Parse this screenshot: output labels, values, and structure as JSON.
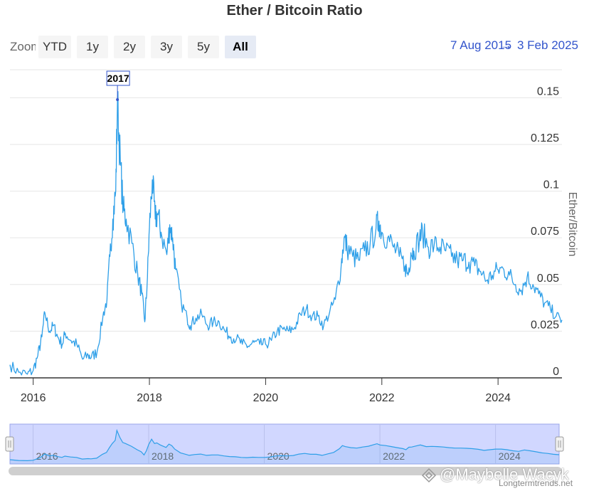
{
  "title": "Ether / Bitcoin Ratio",
  "zoom": {
    "label": "Zoom",
    "buttons": [
      "YTD",
      "1y",
      "2y",
      "3y",
      "5y",
      "All"
    ],
    "active": "All"
  },
  "range": {
    "from": "7 Aug 2015",
    "separator": "→",
    "to": "3 Feb 2025"
  },
  "watermark": "@Maybelle Wacyk",
  "credit": "Longtermtrends.net",
  "colors": {
    "series": "#2e9fe8",
    "navigator_fill": "#ccd3ff",
    "flag_border": "#3355cc",
    "grid": "#e6e6e6"
  },
  "chart_data": {
    "type": "line",
    "title": "Ether / Bitcoin Ratio",
    "xlabel": "",
    "ylabel": "Ether/Bitcoin",
    "xlim": [
      2015.6,
      2025.1
    ],
    "ylim": [
      0,
      0.165
    ],
    "x_ticks": [
      2016,
      2018,
      2020,
      2022,
      2024
    ],
    "y_ticks": [
      0,
      0.025,
      0.05,
      0.075,
      0.1,
      0.125,
      0.15
    ],
    "y_tick_labels": [
      "0",
      "0.025",
      "0.05",
      "0.075",
      "0.1",
      "0.125",
      "0.15"
    ],
    "annotation": {
      "label": "2017",
      "x": 2017.45,
      "y": 0.149
    },
    "navigator_x_ticks": [
      2016,
      2018,
      2020,
      2022,
      2024
    ],
    "series": [
      {
        "name": "Ether/Bitcoin",
        "x": [
          2015.6,
          2015.75,
          2015.9,
          2016.0,
          2016.08,
          2016.15,
          2016.2,
          2016.28,
          2016.35,
          2016.42,
          2016.5,
          2016.55,
          2016.65,
          2016.75,
          2016.85,
          2016.95,
          2017.0,
          2017.1,
          2017.2,
          2017.27,
          2017.32,
          2017.37,
          2017.42,
          2017.45,
          2017.5,
          2017.55,
          2017.6,
          2017.7,
          2017.8,
          2017.87,
          2017.92,
          2017.96,
          2018.0,
          2018.05,
          2018.1,
          2018.14,
          2018.2,
          2018.3,
          2018.35,
          2018.4,
          2018.45,
          2018.55,
          2018.65,
          2018.7,
          2018.8,
          2018.9,
          2019.0,
          2019.1,
          2019.2,
          2019.3,
          2019.4,
          2019.5,
          2019.6,
          2019.7,
          2019.8,
          2019.9,
          2020.0,
          2020.1,
          2020.2,
          2020.3,
          2020.4,
          2020.5,
          2020.6,
          2020.7,
          2020.8,
          2020.9,
          2021.0,
          2021.1,
          2021.2,
          2021.3,
          2021.35,
          2021.4,
          2021.5,
          2021.6,
          2021.7,
          2021.8,
          2021.9,
          2021.95,
          2022.0,
          2022.1,
          2022.2,
          2022.3,
          2022.4,
          2022.45,
          2022.5,
          2022.55,
          2022.65,
          2022.7,
          2022.8,
          2022.9,
          2023.0,
          2023.1,
          2023.2,
          2023.3,
          2023.4,
          2023.5,
          2023.6,
          2023.7,
          2023.8,
          2023.9,
          2024.0,
          2024.1,
          2024.2,
          2024.3,
          2024.4,
          2024.5,
          2024.6,
          2024.7,
          2024.8,
          2024.9,
          2025.0,
          2025.1
        ],
        "values": [
          0.007,
          0.003,
          0.002,
          0.004,
          0.012,
          0.022,
          0.035,
          0.025,
          0.028,
          0.022,
          0.018,
          0.024,
          0.02,
          0.018,
          0.01,
          0.012,
          0.011,
          0.014,
          0.033,
          0.042,
          0.065,
          0.085,
          0.1,
          0.148,
          0.115,
          0.09,
          0.085,
          0.072,
          0.055,
          0.045,
          0.03,
          0.05,
          0.08,
          0.106,
          0.085,
          0.088,
          0.078,
          0.066,
          0.082,
          0.075,
          0.058,
          0.04,
          0.032,
          0.028,
          0.032,
          0.034,
          0.028,
          0.03,
          0.03,
          0.025,
          0.022,
          0.021,
          0.018,
          0.017,
          0.019,
          0.018,
          0.018,
          0.02,
          0.025,
          0.026,
          0.025,
          0.027,
          0.034,
          0.037,
          0.033,
          0.033,
          0.028,
          0.035,
          0.042,
          0.06,
          0.075,
          0.07,
          0.065,
          0.063,
          0.068,
          0.072,
          0.08,
          0.084,
          0.078,
          0.075,
          0.07,
          0.065,
          0.06,
          0.055,
          0.067,
          0.068,
          0.075,
          0.078,
          0.07,
          0.071,
          0.07,
          0.068,
          0.065,
          0.063,
          0.063,
          0.062,
          0.06,
          0.057,
          0.052,
          0.055,
          0.058,
          0.058,
          0.055,
          0.05,
          0.047,
          0.054,
          0.05,
          0.045,
          0.04,
          0.037,
          0.033,
          0.031
        ]
      }
    ]
  }
}
